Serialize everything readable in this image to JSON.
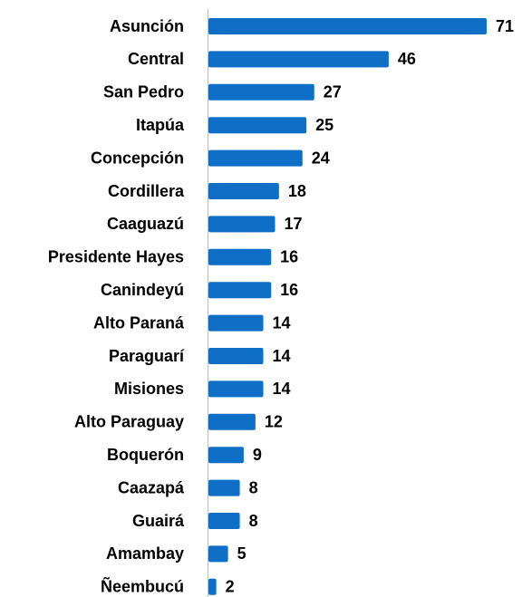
{
  "chart_data": {
    "type": "bar",
    "orientation": "horizontal",
    "categories": [
      "Asunción",
      "Central",
      "San Pedro",
      "Itapúa",
      "Concepción",
      "Cordillera",
      "Caaguazú",
      "Presidente Hayes",
      "Canindeyú",
      "Alto Paraná",
      "Paraguarí",
      "Misiones",
      "Alto Paraguay",
      "Boquerón",
      "Caazapá",
      "Guairá",
      "Amambay",
      "Ñeembucú"
    ],
    "values": [
      71,
      46,
      27,
      25,
      24,
      18,
      17,
      16,
      16,
      14,
      14,
      14,
      12,
      9,
      8,
      8,
      5,
      2
    ],
    "color": "#0f6fc6"
  }
}
